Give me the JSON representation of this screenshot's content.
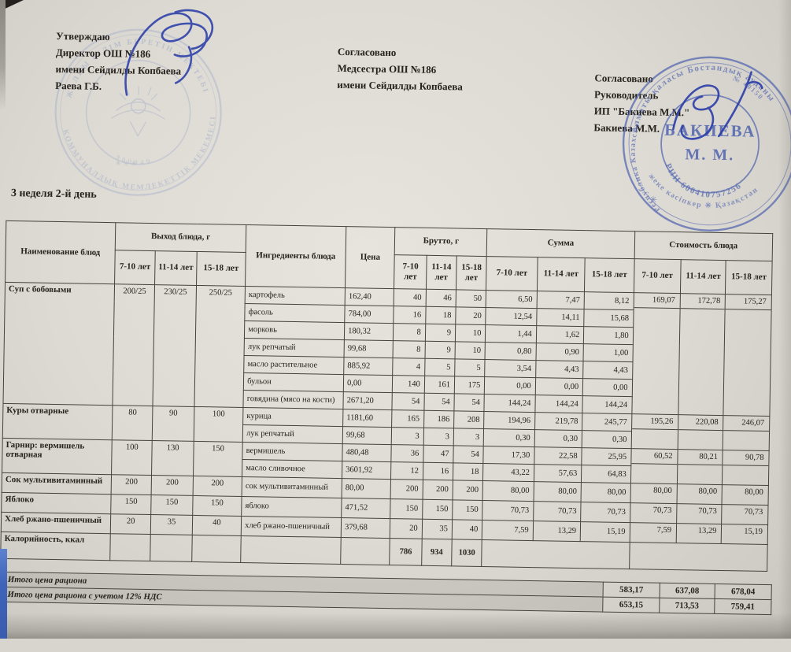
{
  "document": {
    "approve_block": {
      "lines": [
        "Утверждаю",
        "Директор ОШ №186",
        "имени Сейдилды Копбаева",
        "Раева Г.Б."
      ]
    },
    "agree_medical_block": {
      "lines": [
        "Согласовано",
        "Медсестра ОШ №186",
        "имени Сейдилды Копбаева"
      ]
    },
    "agree_supplier_block": {
      "lines": [
        "Согласовано",
        "Руководитель",
        "ИП \"Бакиева М.М.\"",
        "Бакиева М.М."
      ]
    },
    "subtitle": "3 неделя 2-й день"
  },
  "stamps": {
    "school_stamp": {
      "ring_text_top": "ЖАЛПЫ БІЛІМ БЕРЕТІН МЕКТЕБІ",
      "ring_text_bottom": "КОММУНАЛДЫҚ МЕМЛЕКЕТТІК МЕКЕМЕСІ",
      "number_fragment": "900049",
      "color": "#7c90c2"
    },
    "supplier_stamp": {
      "outer_ring_top": "Алматы қаласы Бостандық ауданы",
      "outer_ring_left": "Республика Казахстан",
      "outer_ring_bottom": "жеке кәсіпкер ✳ Қазақстан",
      "number_fragment": "№ 40150",
      "inner_ring": "РНН 600410757256",
      "center_line1": "БАКИЕВА",
      "center_line2": "М. М.",
      "color": "#4a5fae"
    }
  },
  "table": {
    "headers": {
      "name": "Наименование блюд",
      "output": "Выход блюда, г",
      "ingredients": "Ингредиенты блюда",
      "price": "Цена",
      "gross": "Брутто, г",
      "sum": "Сумма",
      "cost": "Стоимость блюда",
      "age_groups": [
        "7-10 лет",
        "11-14 лет",
        "15-18 лет"
      ]
    },
    "dishes": [
      {
        "name": "Суп с бобовыми",
        "output": [
          "200/25",
          "230/25",
          "250/25"
        ],
        "cost": [
          "169,07",
          "172,78",
          "175,27"
        ],
        "ingredients": [
          {
            "name": "картофель",
            "price": "162,40",
            "gross": [
              "40",
              "46",
              "50"
            ],
            "sum": [
              "6,50",
              "7,47",
              "8,12"
            ]
          },
          {
            "name": "фасоль",
            "price": "784,00",
            "gross": [
              "16",
              "18",
              "20"
            ],
            "sum": [
              "12,54",
              "14,11",
              "15,68"
            ]
          },
          {
            "name": "морковь",
            "price": "180,32",
            "gross": [
              "8",
              "9",
              "10"
            ],
            "sum": [
              "1,44",
              "1,62",
              "1,80"
            ]
          },
          {
            "name": "лук репчатый",
            "price": "99,68",
            "gross": [
              "8",
              "9",
              "10"
            ],
            "sum": [
              "0,80",
              "0,90",
              "1,00"
            ]
          },
          {
            "name": "масло растительное",
            "price": "885,92",
            "gross": [
              "4",
              "5",
              "5"
            ],
            "sum": [
              "3,54",
              "4,43",
              "4,43"
            ]
          },
          {
            "name": "бульон",
            "price": "0,00",
            "gross": [
              "140",
              "161",
              "175"
            ],
            "sum": [
              "0,00",
              "0,00",
              "0,00"
            ]
          },
          {
            "name": "говядина (мясо на кости)",
            "price": "2671,20",
            "gross": [
              "54",
              "54",
              "54"
            ],
            "sum": [
              "144,24",
              "144,24",
              "144,24"
            ]
          }
        ]
      },
      {
        "name": "Куры отварные",
        "output": [
          "80",
          "90",
          "100"
        ],
        "cost": [
          "195,26",
          "220,08",
          "246,07"
        ],
        "ingredients": [
          {
            "name": "курица",
            "price": "1181,60",
            "gross": [
              "165",
              "186",
              "208"
            ],
            "sum": [
              "194,96",
              "219,78",
              "245,77"
            ]
          },
          {
            "name": "лук репчатый",
            "price": "99,68",
            "gross": [
              "3",
              "3",
              "3"
            ],
            "sum": [
              "0,30",
              "0,30",
              "0,30"
            ]
          }
        ]
      },
      {
        "name": "Гарнир: вермишель отварная",
        "output": [
          "100",
          "130",
          "150"
        ],
        "cost": [
          "60,52",
          "80,21",
          "90,78"
        ],
        "ingredients": [
          {
            "name": "вермишель",
            "price": "480,48",
            "gross": [
              "36",
              "47",
              "54"
            ],
            "sum": [
              "17,30",
              "22,58",
              "25,95"
            ]
          },
          {
            "name": "масло сливочное",
            "price": "3601,92",
            "gross": [
              "12",
              "16",
              "18"
            ],
            "sum": [
              "43,22",
              "57,63",
              "64,83"
            ]
          }
        ]
      },
      {
        "name": "Сок мультивитаминный",
        "output": [
          "200",
          "200",
          "200"
        ],
        "cost": [
          "80,00",
          "80,00",
          "80,00"
        ],
        "ingredients": [
          {
            "name": "сок мультивитаминный",
            "price": "80,00",
            "gross": [
              "200",
              "200",
              "200"
            ],
            "sum": [
              "80,00",
              "80,00",
              "80,00"
            ]
          }
        ]
      },
      {
        "name": "Яблоко",
        "output": [
          "150",
          "150",
          "150"
        ],
        "cost": [
          "70,73",
          "70,73",
          "70,73"
        ],
        "ingredients": [
          {
            "name": "яблоко",
            "price": "471,52",
            "gross": [
              "150",
              "150",
              "150"
            ],
            "sum": [
              "70,73",
              "70,73",
              "70,73"
            ]
          }
        ]
      },
      {
        "name": "Хлеб ржано-пшеничный",
        "output": [
          "20",
          "35",
          "40"
        ],
        "cost": [
          "7,59",
          "13,29",
          "15,19"
        ],
        "ingredients": [
          {
            "name": "хлеб ржано-пшеничный",
            "price": "379,68",
            "gross": [
              "20",
              "35",
              "40"
            ],
            "sum": [
              "7,59",
              "13,29",
              "15,19"
            ]
          }
        ]
      }
    ],
    "calories_row": {
      "label": "Калорийность, ккал",
      "values": [
        "786",
        "934",
        "1030"
      ]
    },
    "totals": [
      {
        "label": "Итого цена рациона",
        "values": [
          "583,17",
          "637,08",
          "678,04"
        ]
      },
      {
        "label": "Итого цена рациона с учетом 12% НДС",
        "values": [
          "653,15",
          "713,53",
          "759,41"
        ]
      }
    ]
  }
}
